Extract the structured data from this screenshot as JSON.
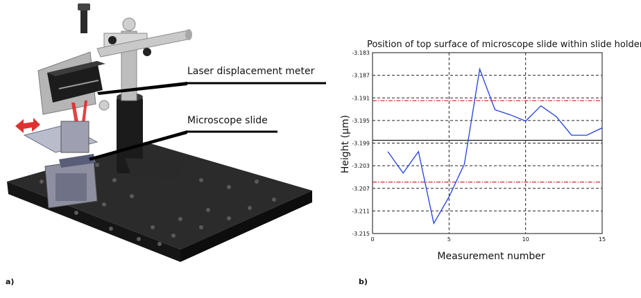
{
  "panel_a": {
    "label": "a)",
    "callouts": [
      "Laser displacement meter",
      "Microscope slide"
    ]
  },
  "panel_b": {
    "label": "b)"
  },
  "chart_data": {
    "type": "line",
    "title": "Position of top surface of microscope slide within slide holder",
    "xlabel": "Measurement number",
    "ylabel": "Height (µm)",
    "xlim": [
      0,
      15
    ],
    "ylim": [
      -3.215,
      -3.183
    ],
    "xticks": [
      "0",
      "5",
      "10",
      "15"
    ],
    "yticks": [
      "-3.183",
      "-3.187",
      "-3.191",
      "-3.195",
      "-3.199",
      "-3.203",
      "-3.207",
      "-3.211",
      "-3.215"
    ],
    "grid": true,
    "series": [
      {
        "color": "#1f3fdc",
        "x": [
          1,
          2,
          3,
          4,
          5,
          6,
          7,
          8,
          9,
          10,
          11,
          12,
          13,
          14,
          15
        ],
        "y": [
          -3.2005,
          -3.2043,
          -3.2005,
          -3.2132,
          -3.2085,
          -3.2027,
          -3.1859,
          -3.1931,
          -3.194,
          -3.1951,
          -3.1924,
          -3.1943,
          -3.1976,
          -3.1976,
          -3.1963
        ]
      }
    ],
    "reference_lines": [
      {
        "y": -3.1915,
        "color": "#d22222",
        "style": "dash-dot"
      },
      {
        "y": -3.1985,
        "color": "#111111",
        "style": "solid"
      },
      {
        "y": -3.2059,
        "color": "#d22222",
        "style": "dash-dot"
      }
    ]
  }
}
